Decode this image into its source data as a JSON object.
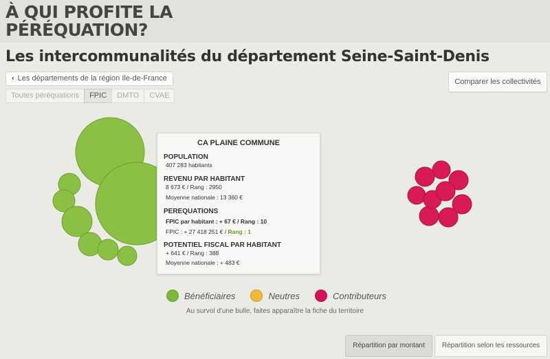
{
  "header": {
    "logo_line1": "À QUI PROFITE LA",
    "logo_line2": "PÉRÉQUATION?",
    "page_title": "Les intercommunalités du département Seine-Saint-Denis"
  },
  "nav": {
    "back_label": "Les départements de la région Ile-de-France",
    "compare_label": "Comparer les collectivités",
    "tabs": [
      {
        "label": "Toutes péréquations",
        "active": false
      },
      {
        "label": "FPIC",
        "active": true
      },
      {
        "label": "DMTO",
        "active": false
      },
      {
        "label": "CVAE",
        "active": false
      }
    ]
  },
  "tooltip": {
    "title": "CA PLAINE COMMUNE",
    "population_heading": "POPULATION",
    "population_value": "407 283 habitants",
    "revenu_heading": "REVENU PAR HABITANT",
    "revenu_value": "8 673 € / Rang : 2950",
    "revenu_moyenne": "Moyenne nationale : 13 360 €",
    "perequations_heading": "PEREQUATIONS",
    "fpic_hab_label": "FPIC par habitant : ",
    "fpic_hab_value": "+ 67 € / Rang : 10",
    "fpic_total_label": "FPIC : + 27 418 251 € / ",
    "fpic_total_rang": "Rang : 1",
    "potentiel_heading": "POTENTIEL FISCAL PAR HABITANT",
    "potentiel_value": "+ 641 € / Rang : 388",
    "potentiel_moyenne": "Moyenne nationale : + 483 €"
  },
  "legend": {
    "items": [
      {
        "label": "Bénéficiaires",
        "color": "#7db83a"
      },
      {
        "label": "Neutres",
        "color": "#f2b83a"
      },
      {
        "label": "Contributeurs",
        "color": "#d4145a"
      }
    ],
    "hint": "Au survol d'une bulle, faites apparaître la fiche du territoire"
  },
  "buttons": {
    "amount": "Répartition par montant",
    "resources": "Répartition selon les ressources"
  },
  "colors": {
    "beneficiaire": "#8cc044",
    "beneficiaire_stroke": "#6e9e2e",
    "contributeur": "#d81b56",
    "contributeur_stroke": "#a8123f"
  }
}
